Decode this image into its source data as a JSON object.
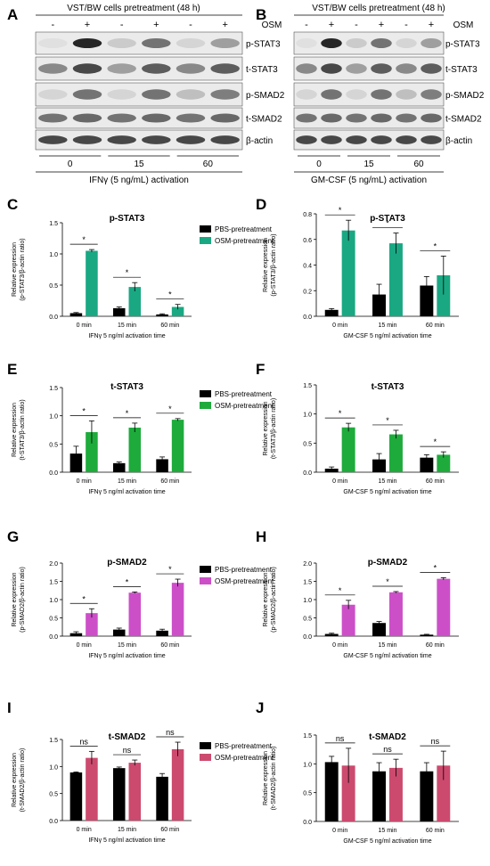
{
  "blots": [
    {
      "letter": "A",
      "header": "VST/BW cells pretreatment (48 h)",
      "osm_label": "OSM",
      "osm_signs": [
        "-",
        "+",
        "-",
        "+",
        "-",
        "+"
      ],
      "bands": [
        "p-STAT3",
        "t-STAT3",
        "p-SMAD2",
        "t-SMAD2",
        "β-actin"
      ],
      "times": [
        "0",
        "15",
        "60"
      ],
      "activation": "IFNγ (5 ng/mL) activation"
    },
    {
      "letter": "B",
      "header": "VST/BW cells pretreatment (48 h)",
      "osm_label": "OSM",
      "osm_signs": [
        "-",
        "+",
        "-",
        "+",
        "-",
        "+"
      ],
      "bands": [
        "p-STAT3",
        "t-STAT3",
        "p-SMAD2",
        "t-SMAD2",
        "β-actin"
      ],
      "times": [
        "0",
        "15",
        "60"
      ],
      "activation": "GM-CSF (5 ng/mL) activation"
    }
  ],
  "chart_data": [
    {
      "letter": "C",
      "type": "bar",
      "title": "p-STAT3",
      "ylabel": [
        "Relative expression",
        "(p-STAT3/β-actin ratio)"
      ],
      "xlabel": "IFNγ 5 ng/ml activation time",
      "categories": [
        "0 min",
        "15 min",
        "60 min"
      ],
      "ylim": [
        0,
        1.5
      ],
      "yticks": [
        "0.0",
        "0.5",
        "1.0",
        "1.5"
      ],
      "ytick_values": [
        0,
        0.5,
        1.0,
        1.5
      ],
      "legend": [
        "PBS-pretreatment",
        "OSM-pretreatment"
      ],
      "series": [
        {
          "name": "PBS-pretreatment",
          "color": "#000000",
          "values": [
            0.05,
            0.13,
            0.03
          ],
          "errors": [
            0.01,
            0.02,
            0.01
          ]
        },
        {
          "name": "OSM-pretreatment",
          "color": "#1aa883",
          "values": [
            1.05,
            0.47,
            0.15
          ],
          "errors": [
            0.02,
            0.07,
            0.04
          ]
        }
      ],
      "significance": [
        "*",
        "*",
        "*"
      ]
    },
    {
      "letter": "D",
      "type": "bar",
      "title": "p-STAT3",
      "ylabel": [
        "Relative expression",
        "(p-STAT3/β-actin ratio)"
      ],
      "xlabel": "GM-CSF 5 ng/ml activation time",
      "categories": [
        "0 min",
        "15 min",
        "60 min"
      ],
      "ylim": [
        0,
        0.8
      ],
      "yticks": [
        "0.0",
        "0.2",
        "0.4",
        "0.6",
        "0.8"
      ],
      "ytick_values": [
        0,
        0.2,
        0.4,
        0.6,
        0.8
      ],
      "series": [
        {
          "name": "PBS-pretreatment",
          "color": "#000000",
          "values": [
            0.05,
            0.17,
            0.24
          ],
          "errors": [
            0.01,
            0.08,
            0.07
          ]
        },
        {
          "name": "OSM-pretreatment",
          "color": "#1aa883",
          "values": [
            0.67,
            0.57,
            0.32
          ],
          "errors": [
            0.08,
            0.08,
            0.15
          ]
        }
      ],
      "significance": [
        "*",
        "*",
        "*"
      ]
    },
    {
      "letter": "E",
      "type": "bar",
      "title": "t-STAT3",
      "ylabel": [
        "Relative expression",
        "(t-STAT3/β-actin ratio)"
      ],
      "xlabel": "IFNγ 5 ng/ml activation time",
      "categories": [
        "0 min",
        "15 min",
        "60 min"
      ],
      "ylim": [
        0,
        1.5
      ],
      "yticks": [
        "0.0",
        "0.5",
        "1.0",
        "1.5"
      ],
      "ytick_values": [
        0,
        0.5,
        1.0,
        1.5
      ],
      "legend": [
        "PBS-pretreatment",
        "OSM-pretreatment"
      ],
      "series": [
        {
          "name": "PBS-pretreatment",
          "color": "#000000",
          "values": [
            0.33,
            0.16,
            0.23
          ],
          "errors": [
            0.13,
            0.02,
            0.04
          ]
        },
        {
          "name": "OSM-pretreatment",
          "color": "#1eab3c",
          "values": [
            0.71,
            0.79,
            0.93
          ],
          "errors": [
            0.2,
            0.08,
            0.02
          ]
        }
      ],
      "significance": [
        "*",
        "*",
        "*"
      ]
    },
    {
      "letter": "F",
      "type": "bar",
      "title": "t-STAT3",
      "ylabel": [
        "Relative expression",
        "(t-STAT3/β-actin ratio)"
      ],
      "xlabel": "GM-CSF 5 ng/ml activation time",
      "categories": [
        "0 min",
        "15 min",
        "60 min"
      ],
      "ylim": [
        0,
        1.5
      ],
      "yticks": [
        "0.0",
        "0.5",
        "1.0",
        "1.5"
      ],
      "ytick_values": [
        0,
        0.5,
        1.0,
        1.5
      ],
      "series": [
        {
          "name": "PBS-pretreatment",
          "color": "#000000",
          "values": [
            0.06,
            0.22,
            0.25
          ],
          "errors": [
            0.03,
            0.1,
            0.05
          ]
        },
        {
          "name": "OSM-pretreatment",
          "color": "#1eab3c",
          "values": [
            0.77,
            0.65,
            0.3
          ],
          "errors": [
            0.07,
            0.07,
            0.05
          ]
        }
      ],
      "significance": [
        "*",
        "*",
        "*"
      ]
    },
    {
      "letter": "G",
      "type": "bar",
      "title": "p-SMAD2",
      "ylabel": [
        "Relative expression",
        "(p-SMAD2/β-actin ratio)"
      ],
      "xlabel": "IFNγ 5 ng/ml activation time",
      "categories": [
        "0 min",
        "15 min",
        "60 min"
      ],
      "ylim": [
        0,
        2.0
      ],
      "yticks": [
        "0.0",
        "0.5",
        "1.0",
        "1.5",
        "2.0"
      ],
      "ytick_values": [
        0,
        0.5,
        1.0,
        1.5,
        2.0
      ],
      "legend": [
        "PBS-pretreatment",
        "OSM-pretreatment"
      ],
      "series": [
        {
          "name": "PBS-pretreatment",
          "color": "#000000",
          "values": [
            0.08,
            0.18,
            0.15
          ],
          "errors": [
            0.04,
            0.04,
            0.04
          ]
        },
        {
          "name": "OSM-pretreatment",
          "color": "#cc4fc8",
          "values": [
            0.63,
            1.19,
            1.46
          ],
          "errors": [
            0.12,
            0.02,
            0.1
          ]
        }
      ],
      "significance": [
        "*",
        "*",
        "*"
      ]
    },
    {
      "letter": "H",
      "type": "bar",
      "title": "p-SMAD2",
      "ylabel": [
        "Relative expression",
        "(p-SMAD2/β-actin ratio)"
      ],
      "xlabel": "GM-CSF 5 ng/ml activation time",
      "categories": [
        "0 min",
        "15 min",
        "60 min"
      ],
      "ylim": [
        0,
        2.0
      ],
      "yticks": [
        "0.0",
        "0.5",
        "1.0",
        "1.5",
        "2.0"
      ],
      "ytick_values": [
        0,
        0.5,
        1.0,
        1.5,
        2.0
      ],
      "series": [
        {
          "name": "PBS-pretreatment",
          "color": "#000000",
          "values": [
            0.06,
            0.36,
            0.04
          ],
          "errors": [
            0.02,
            0.04,
            0.01
          ]
        },
        {
          "name": "OSM-pretreatment",
          "color": "#cc4fc8",
          "values": [
            0.86,
            1.2,
            1.57
          ],
          "errors": [
            0.12,
            0.02,
            0.03
          ]
        }
      ],
      "significance": [
        "*",
        "*",
        "*"
      ]
    },
    {
      "letter": "I",
      "type": "bar",
      "title": "t-SMAD2",
      "ylabel": [
        "Relative expression",
        "(t-SMAD2/β-actin ratio)"
      ],
      "xlabel": "IFNγ 5 ng/ml activation time",
      "categories": [
        "0 min",
        "15 min",
        "60 min"
      ],
      "ylim": [
        0,
        1.5
      ],
      "yticks": [
        "0.0",
        "0.5",
        "1.0",
        "1.5"
      ],
      "ytick_values": [
        0,
        0.5,
        1.0,
        1.5
      ],
      "legend": [
        "PBS-pretreatment",
        "OSM-pretreatment"
      ],
      "series": [
        {
          "name": "PBS-pretreatment",
          "color": "#000000",
          "values": [
            0.89,
            0.97,
            0.81
          ],
          "errors": [
            0.01,
            0.02,
            0.06
          ]
        },
        {
          "name": "OSM-pretreatment",
          "color": "#cc4a6e",
          "values": [
            1.16,
            1.07,
            1.32
          ],
          "errors": [
            0.12,
            0.05,
            0.13
          ]
        }
      ],
      "significance": [
        "ns",
        "ns",
        "ns"
      ]
    },
    {
      "letter": "J",
      "type": "bar",
      "title": "t-SMAD2",
      "ylabel": [
        "Relative expression",
        "(t-SMAD2/β-actin ratio)"
      ],
      "xlabel": "GM-CSF 5 ng/ml activation time",
      "categories": [
        "0 min",
        "15 min",
        "60 min"
      ],
      "ylim": [
        0,
        1.5
      ],
      "yticks": [
        "0.0",
        "0.5",
        "1.0",
        "1.5"
      ],
      "ytick_values": [
        0,
        0.5,
        1.0,
        1.5
      ],
      "series": [
        {
          "name": "PBS-pretreatment",
          "color": "#000000",
          "values": [
            1.03,
            0.87,
            0.87
          ],
          "errors": [
            0.1,
            0.15,
            0.15
          ]
        },
        {
          "name": "OSM-pretreatment",
          "color": "#cc4a6e",
          "values": [
            0.97,
            0.93,
            0.97
          ],
          "errors": [
            0.3,
            0.15,
            0.25
          ]
        }
      ],
      "significance": [
        "ns",
        "ns",
        "ns"
      ]
    }
  ]
}
